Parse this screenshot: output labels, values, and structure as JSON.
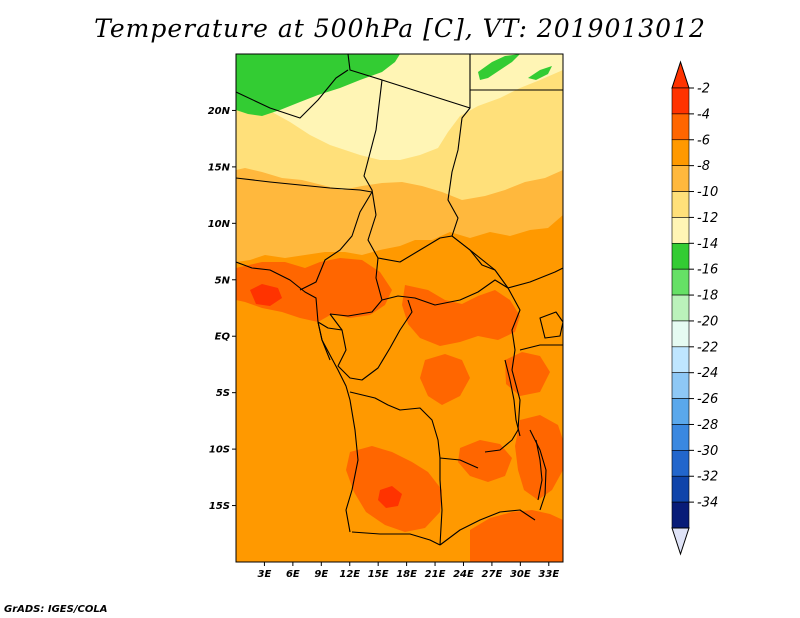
{
  "title": "Temperature at 500hPa [C], VT: 2019013012",
  "credit": "GrADS: IGES/COLA",
  "map": {
    "lon_range": [
      0,
      34.5
    ],
    "lat_range": [
      -20,
      25
    ],
    "lon_ticks": [
      {
        "value": 3,
        "label": "3E"
      },
      {
        "value": 6,
        "label": "6E"
      },
      {
        "value": 9,
        "label": "9E"
      },
      {
        "value": 12,
        "label": "12E"
      },
      {
        "value": 15,
        "label": "15E"
      },
      {
        "value": 18,
        "label": "18E"
      },
      {
        "value": 21,
        "label": "21E"
      },
      {
        "value": 24,
        "label": "24E"
      },
      {
        "value": 27,
        "label": "27E"
      },
      {
        "value": 30,
        "label": "30E"
      },
      {
        "value": 33,
        "label": "33E"
      }
    ],
    "lat_ticks": [
      {
        "value": 20,
        "label": "20N"
      },
      {
        "value": 15,
        "label": "15N"
      },
      {
        "value": 10,
        "label": "10N"
      },
      {
        "value": 5,
        "label": "5N"
      },
      {
        "value": 0,
        "label": "EQ"
      },
      {
        "value": -5,
        "label": "5S"
      },
      {
        "value": -10,
        "label": "10S"
      },
      {
        "value": -15,
        "label": "15S"
      }
    ]
  },
  "colorbar": {
    "labels": [
      "-2",
      "-4",
      "-6",
      "-8",
      "-10",
      "-12",
      "-14",
      "-16",
      "-18",
      "-20",
      "-22",
      "-24",
      "-26",
      "-28",
      "-30",
      "-32",
      "-34"
    ],
    "colors": [
      "#ff3300",
      "#ff6600",
      "#ff9900",
      "#ffb83d",
      "#ffe07a",
      "#fff5b5",
      "#33cc33",
      "#66e066",
      "#bbf2bb",
      "#e6fbf2",
      "#bfe6ff",
      "#8ec8f5",
      "#5aa8ec",
      "#3a88e0",
      "#2266cc",
      "#0f44aa",
      "#081c78"
    ],
    "top_triangle_color": "#ff3300",
    "bottom_triangle_color": "#dfe3f7"
  }
}
